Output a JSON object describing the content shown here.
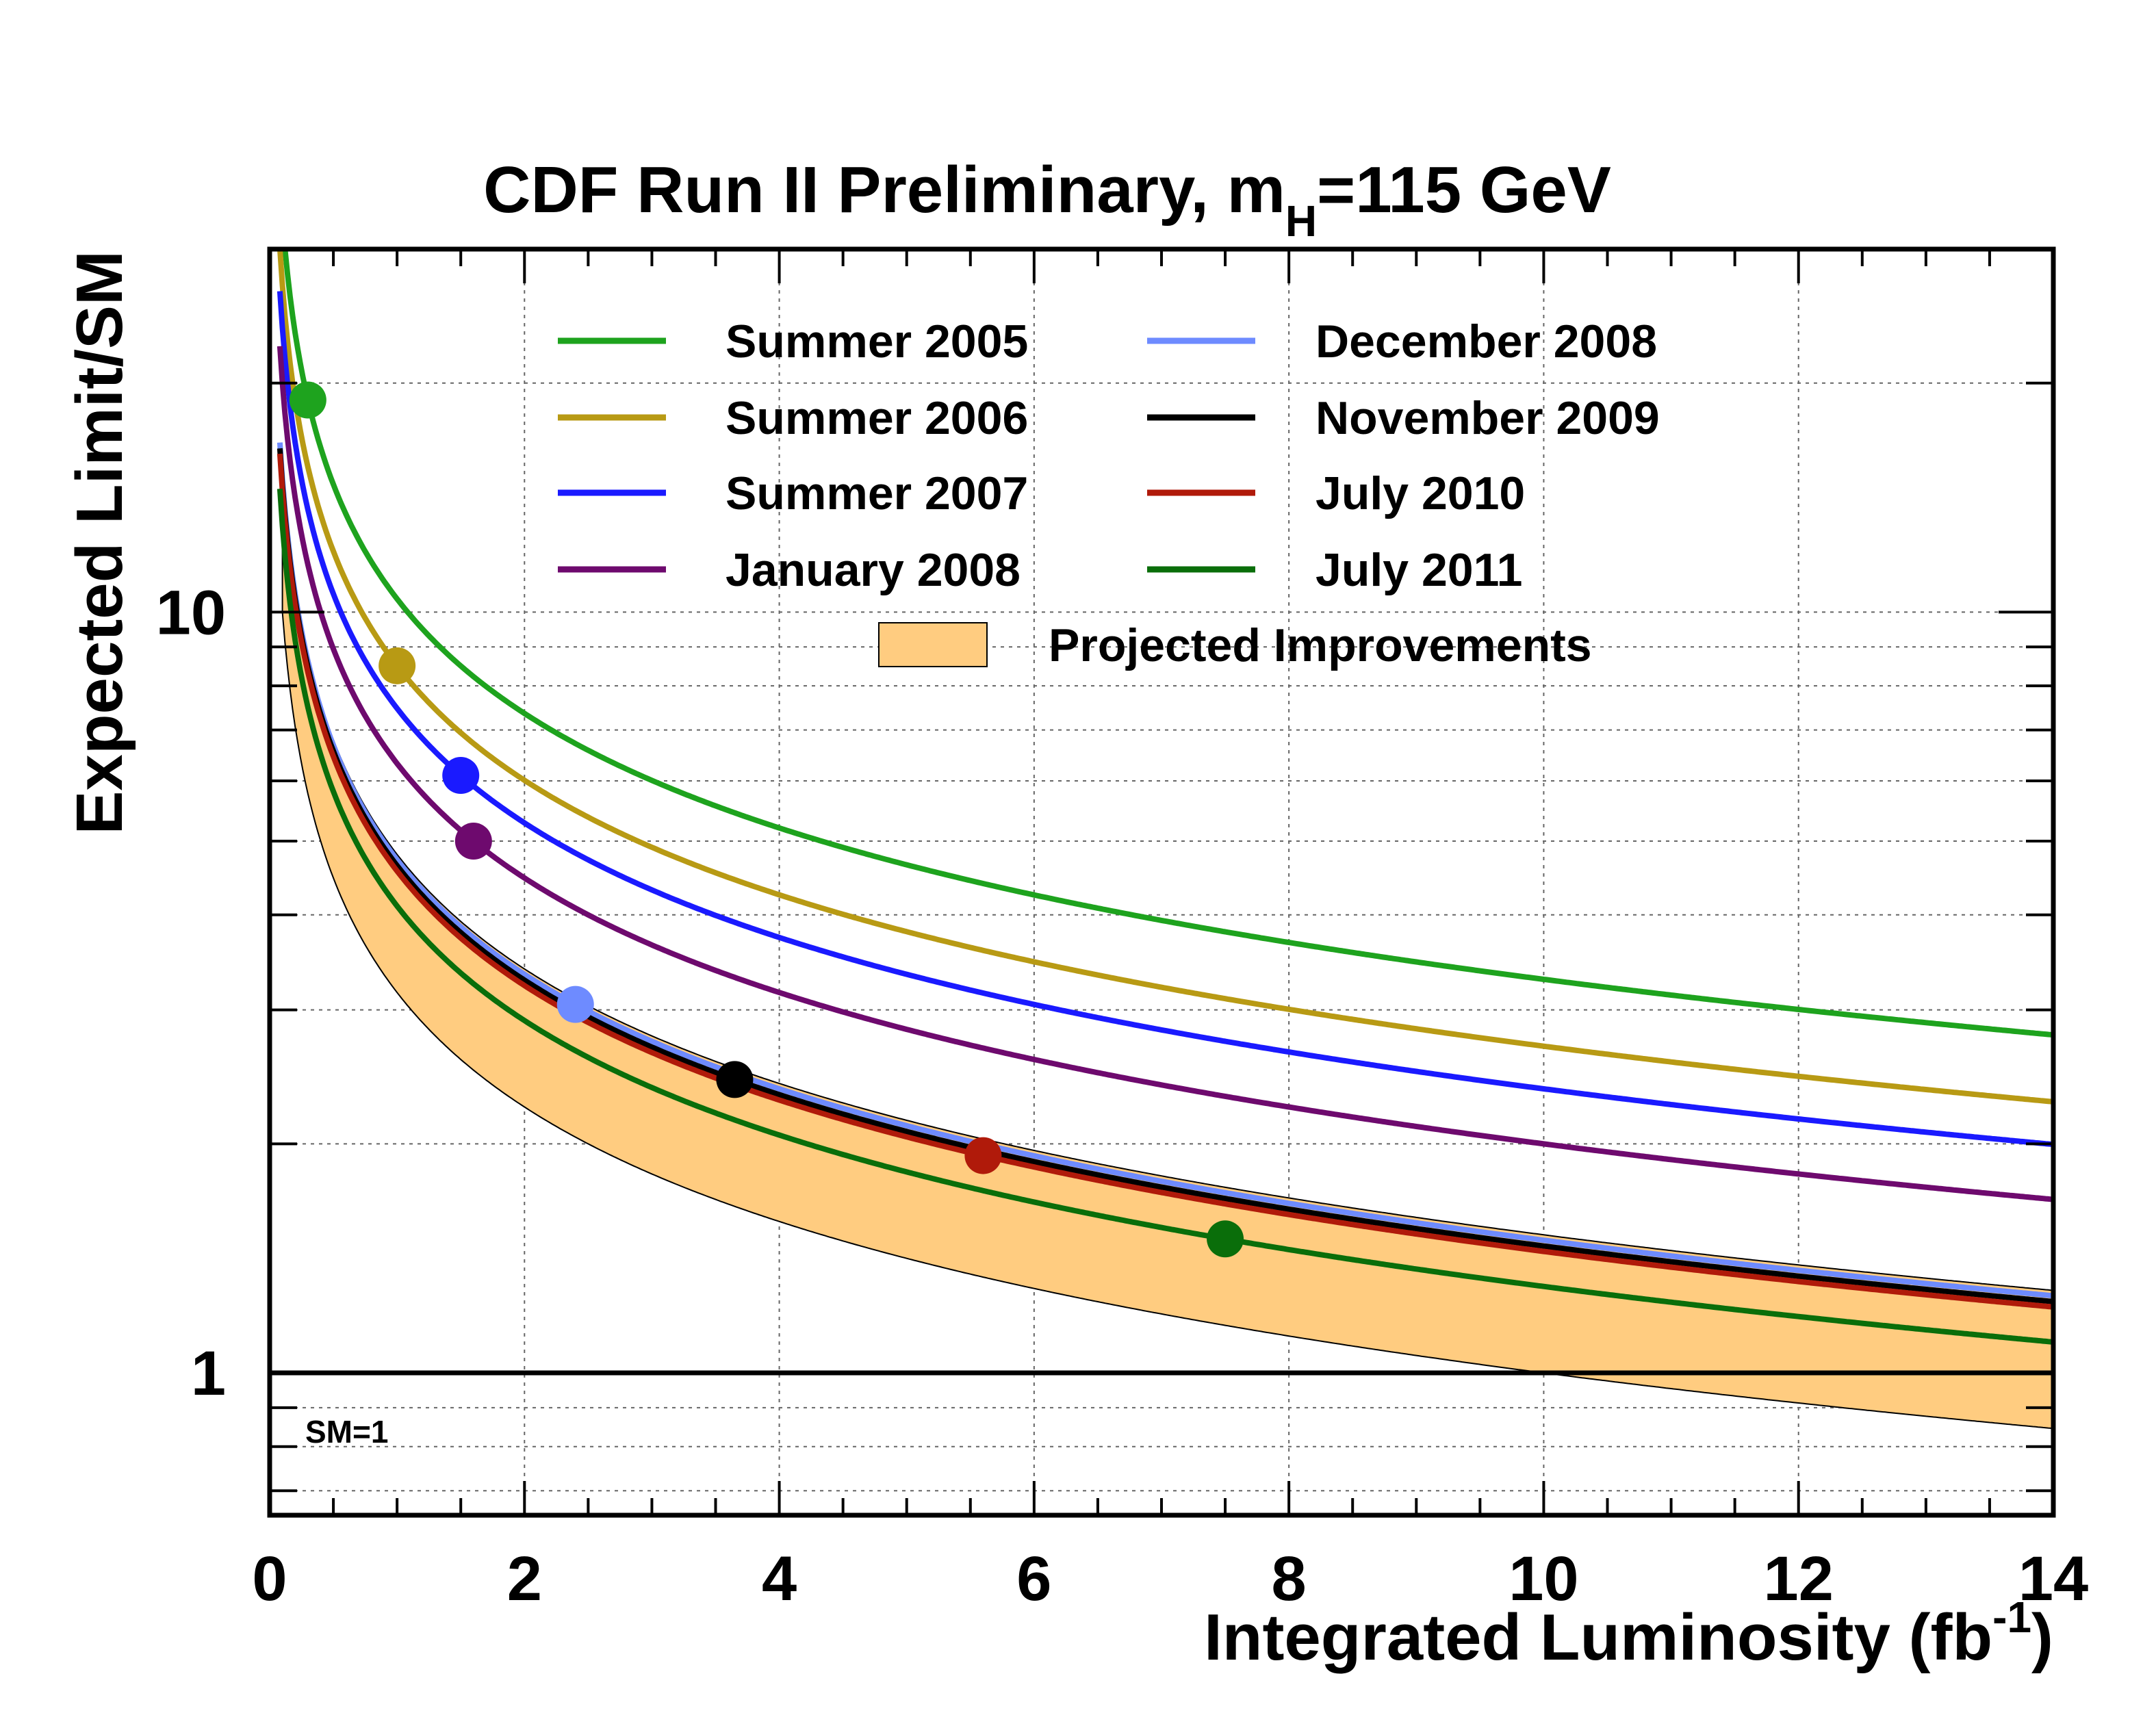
{
  "chart_data": {
    "type": "line",
    "title_main": "CDF Run II Preliminary, m",
    "title_sub": "H",
    "title_tail": "=115 GeV",
    "xlabel_main": "Integrated Luminosity (fb",
    "xlabel_sup": "-1",
    "xlabel_tail": ")",
    "ylabel": "Expected Limit/SM",
    "xlim": [
      0,
      14
    ],
    "ylim": [
      0.65,
      30
    ],
    "yscale": "log",
    "grid": true,
    "x_ticks": [
      {
        "value": 0,
        "label": "0"
      },
      {
        "value": 2,
        "label": "2"
      },
      {
        "value": 4,
        "label": "4"
      },
      {
        "value": 6,
        "label": "6"
      },
      {
        "value": 8,
        "label": "8"
      },
      {
        "value": 10,
        "label": "10"
      },
      {
        "value": 12,
        "label": "12"
      },
      {
        "value": 14,
        "label": "14"
      }
    ],
    "y_ticks": [
      {
        "value": 1,
        "label": "1"
      },
      {
        "value": 10,
        "label": "10"
      }
    ],
    "sm_line": {
      "value": 1,
      "label": "SM=1"
    },
    "series": [
      {
        "name": "Summer 2005",
        "color": "#1ea31e",
        "ref_x": 0.3,
        "ref_y": 19.0,
        "x_start": 0.1
      },
      {
        "name": "Summer 2006",
        "color": "#b89a14",
        "ref_x": 1.0,
        "ref_y": 8.5,
        "x_start": 0.08
      },
      {
        "name": "Summer 2007",
        "color": "#1a1aff",
        "ref_x": 1.5,
        "ref_y": 6.1,
        "x_start": 0.08
      },
      {
        "name": "January 2008",
        "color": "#6e0a6e",
        "ref_x": 1.6,
        "ref_y": 5.0,
        "x_start": 0.08
      },
      {
        "name": "December 2008",
        "color": "#6e8bff",
        "ref_x": 2.4,
        "ref_y": 3.05,
        "x_start": 0.08
      },
      {
        "name": "November 2009",
        "color": "#000000",
        "ref_x": 3.65,
        "ref_y": 2.43,
        "x_start": 0.08
      },
      {
        "name": "July 2010",
        "color": "#b01a0a",
        "ref_x": 5.6,
        "ref_y": 1.93,
        "x_start": 0.08
      },
      {
        "name": "July 2011",
        "color": "#0a6e0a",
        "ref_x": 7.5,
        "ref_y": 1.5,
        "x_start": 0.08
      }
    ],
    "projected_band": {
      "name": "Projected Improvements",
      "fill": "#ffcc80",
      "upper_ref_x": 2.4,
      "upper_ref_y": 3.1,
      "lower_ref_x": 10.0,
      "lower_ref_y": 1.0
    },
    "legend_position": "top",
    "legend_columns": 2
  }
}
